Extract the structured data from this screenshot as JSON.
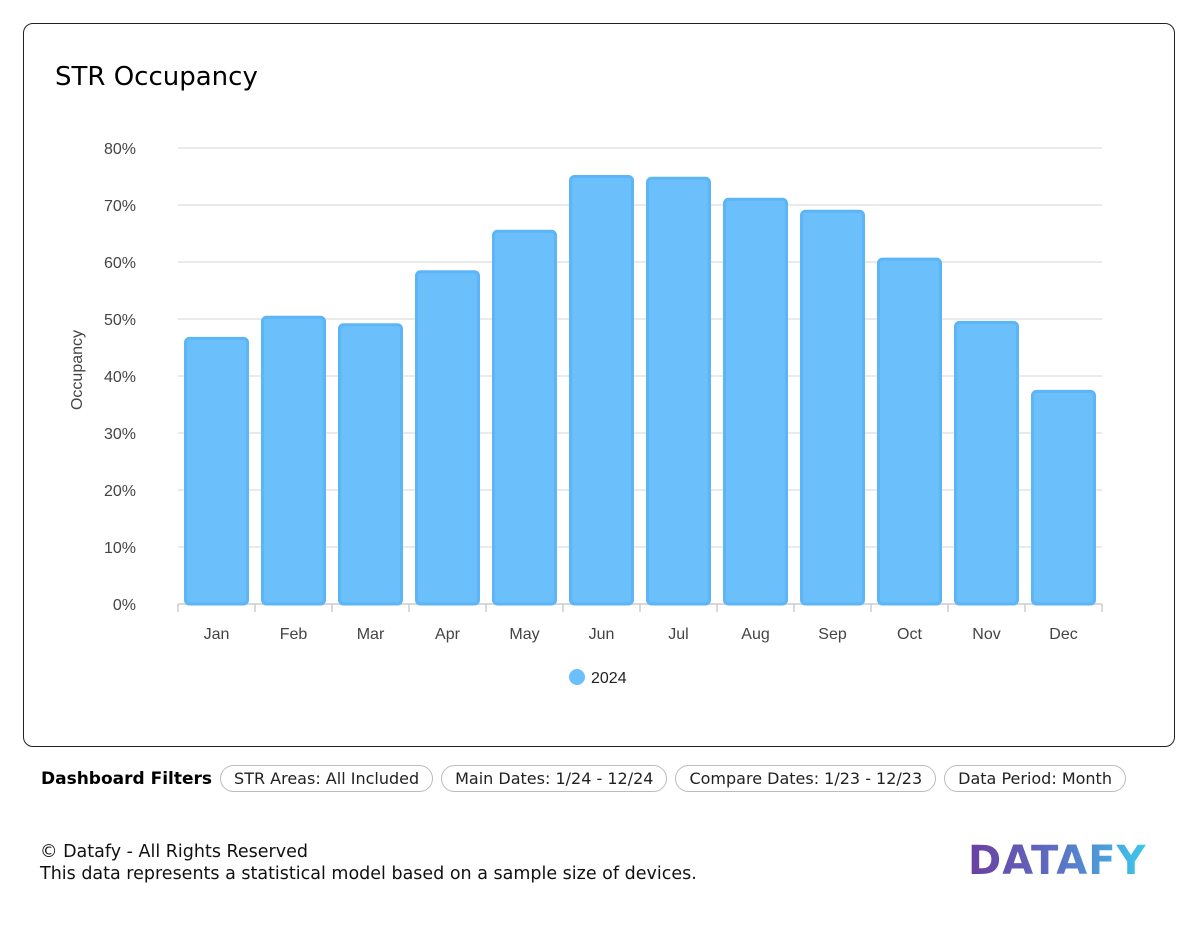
{
  "card": {
    "title": "STR Occupancy"
  },
  "chart_data": {
    "type": "bar",
    "title": "",
    "xlabel": "",
    "ylabel": "Occupancy",
    "ylim": [
      0,
      80
    ],
    "yticks": [
      "0%",
      "10%",
      "20%",
      "30%",
      "40%",
      "50%",
      "60%",
      "70%",
      "80%"
    ],
    "grid": true,
    "legend_placement": "bottom",
    "categories": [
      "Jan",
      "Feb",
      "Mar",
      "Apr",
      "May",
      "Jun",
      "Jul",
      "Aug",
      "Sep",
      "Oct",
      "Nov",
      "Dec"
    ],
    "series": [
      {
        "name": "2024",
        "color": "#6bbffb",
        "values": [
          46.6,
          50.3,
          49.0,
          58.3,
          65.4,
          75.0,
          74.7,
          71.0,
          68.9,
          60.5,
          49.4,
          37.3
        ]
      }
    ]
  },
  "filters": {
    "label": "Dashboard Filters",
    "chips": [
      "STR Areas: All Included",
      "Main Dates: 1/24 - 12/24",
      "Compare Dates: 1/23 - 12/23",
      "Data Period: Month"
    ]
  },
  "footer": {
    "copyright": "© Datafy - All Rights Reserved",
    "disclaimer": "This data represents a statistical model based on a sample size of devices.",
    "logo": "DATAFY"
  }
}
